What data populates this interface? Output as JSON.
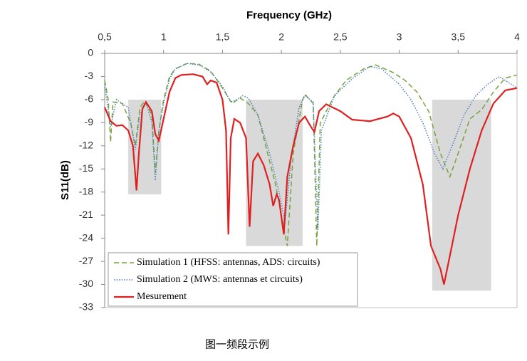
{
  "chart_data": {
    "type": "line",
    "xlabel": "Frequency  (GHz)",
    "ylabel": "S11(dB)",
    "caption": "图一频段示例",
    "xlim": [
      0.5,
      4
    ],
    "ylim": [
      -33,
      0
    ],
    "xticks": [
      {
        "value": 0.5,
        "label": "0,5"
      },
      1,
      {
        "value": 1.5,
        "label": "1,5"
      },
      2,
      {
        "value": 2.5,
        "label": "2,5"
      },
      3,
      {
        "value": 3.5,
        "label": "3,5"
      },
      4
    ],
    "yticks": [
      0,
      -3,
      -6,
      -9,
      -12,
      -15,
      -18,
      -21,
      -24,
      -27,
      -30,
      -33
    ],
    "bands": [
      {
        "x": [
          0.7,
          0.98
        ],
        "y": [
          -6,
          -18.3
        ]
      },
      {
        "x": [
          1.7,
          2.18
        ],
        "y": [
          -6,
          -25
        ]
      },
      {
        "x": [
          3.28,
          3.78
        ],
        "y": [
          -6,
          -30.8
        ]
      }
    ],
    "band_color": "#d9d9d9",
    "series": [
      {
        "name": "Simulation 1 (HFSS: antennas, ADS: circuits)",
        "color": "#77a33d",
        "dash": "dashed",
        "x": [
          0.5,
          0.53,
          0.55,
          0.57,
          0.65,
          0.72,
          0.76,
          0.8,
          0.84,
          0.9,
          0.93,
          0.96,
          1.0,
          1.05,
          1.1,
          1.2,
          1.3,
          1.4,
          1.5,
          1.58,
          1.65,
          1.72,
          1.8,
          1.85,
          1.95,
          2.0,
          2.05,
          2.1,
          2.18,
          2.2,
          2.27,
          2.3,
          2.33,
          2.45,
          2.55,
          2.7,
          2.8,
          2.95,
          3.05,
          3.15,
          3.25,
          3.35,
          3.43,
          3.5,
          3.6,
          3.7,
          3.8,
          3.9,
          4.0
        ],
        "values": [
          -3.5,
          -6,
          -11.5,
          -6.3,
          -6.5,
          -9,
          -12,
          -7,
          -6.2,
          -8,
          -15.5,
          -10,
          -6,
          -3,
          -2,
          -1.3,
          -1.4,
          -2.3,
          -4.5,
          -6.5,
          -5.8,
          -6.5,
          -8,
          -11,
          -17,
          -21,
          -25,
          -13,
          -6,
          -5.3,
          -6.5,
          -25,
          -9,
          -5.5,
          -3.5,
          -2,
          -1.5,
          -2.5,
          -3.5,
          -5,
          -7.5,
          -13,
          -16,
          -13,
          -8.5,
          -7.3,
          -5,
          -3.2,
          -2.8
        ]
      },
      {
        "name": "Simulation 2 (MWS: antennas et circuits)",
        "color": "#4f81bd",
        "dash": "dotted",
        "x": [
          0.5,
          0.55,
          0.6,
          0.7,
          0.76,
          0.8,
          0.85,
          0.9,
          0.93,
          0.96,
          1.0,
          1.05,
          1.1,
          1.2,
          1.3,
          1.4,
          1.5,
          1.57,
          1.62,
          1.67,
          1.72,
          1.8,
          1.9,
          1.98,
          2.03,
          2.08,
          2.15,
          2.2,
          2.27,
          2.31,
          2.34,
          2.45,
          2.6,
          2.75,
          2.85,
          3.0,
          3.1,
          3.2,
          3.3,
          3.37,
          3.45,
          3.55,
          3.65,
          3.75,
          3.85,
          3.95,
          4.0
        ],
        "values": [
          -4,
          -9.5,
          -6,
          -7,
          -12.5,
          -8,
          -6.3,
          -9,
          -16.5,
          -10,
          -6.5,
          -3.3,
          -2,
          -1.3,
          -1.5,
          -2.4,
          -4.3,
          -6.3,
          -6,
          -5.5,
          -5.8,
          -8,
          -13,
          -18,
          -22,
          -14,
          -7,
          -5.5,
          -6.3,
          -23,
          -10,
          -5.5,
          -3.3,
          -1.7,
          -2,
          -4,
          -6,
          -9,
          -13,
          -15,
          -12,
          -8,
          -5.5,
          -4,
          -3,
          -4,
          -4.5
        ]
      },
      {
        "name": "Mesurement",
        "color": "#e02020",
        "dash": "solid",
        "x": [
          0.5,
          0.55,
          0.6,
          0.65,
          0.7,
          0.74,
          0.77,
          0.79,
          0.82,
          0.85,
          0.9,
          0.93,
          0.96,
          1.0,
          1.05,
          1.1,
          1.15,
          1.25,
          1.33,
          1.37,
          1.4,
          1.45,
          1.5,
          1.53,
          1.55,
          1.57,
          1.6,
          1.65,
          1.7,
          1.73,
          1.76,
          1.8,
          1.85,
          1.9,
          1.93,
          1.96,
          1.98,
          2.02,
          2.05,
          2.1,
          2.15,
          2.2,
          2.25,
          2.28,
          2.32,
          2.38,
          2.5,
          2.6,
          2.75,
          2.9,
          2.95,
          3.0,
          3.1,
          3.2,
          3.27,
          3.35,
          3.38,
          3.42,
          3.5,
          3.6,
          3.7,
          3.8,
          3.9,
          4.0
        ],
        "values": [
          -7,
          -8.8,
          -9.4,
          -9.3,
          -10,
          -12,
          -17.8,
          -13,
          -7.2,
          -6.3,
          -7.5,
          -10.5,
          -11.3,
          -8.5,
          -5,
          -3.2,
          -2.8,
          -2.7,
          -3,
          -4,
          -3.5,
          -3.8,
          -6,
          -10,
          -23.5,
          -11,
          -8.5,
          -9,
          -11,
          -22.5,
          -14,
          -13,
          -14.5,
          -17,
          -19.8,
          -18.3,
          -19,
          -23.5,
          -16,
          -12,
          -9,
          -8.2,
          -9.5,
          -10.2,
          -7.5,
          -6.6,
          -7.5,
          -8.6,
          -8.8,
          -8.2,
          -7.8,
          -8.2,
          -11,
          -17,
          -25,
          -28,
          -30,
          -27,
          -21,
          -15,
          -10,
          -6.5,
          -4.8,
          -4.5
        ]
      }
    ]
  }
}
